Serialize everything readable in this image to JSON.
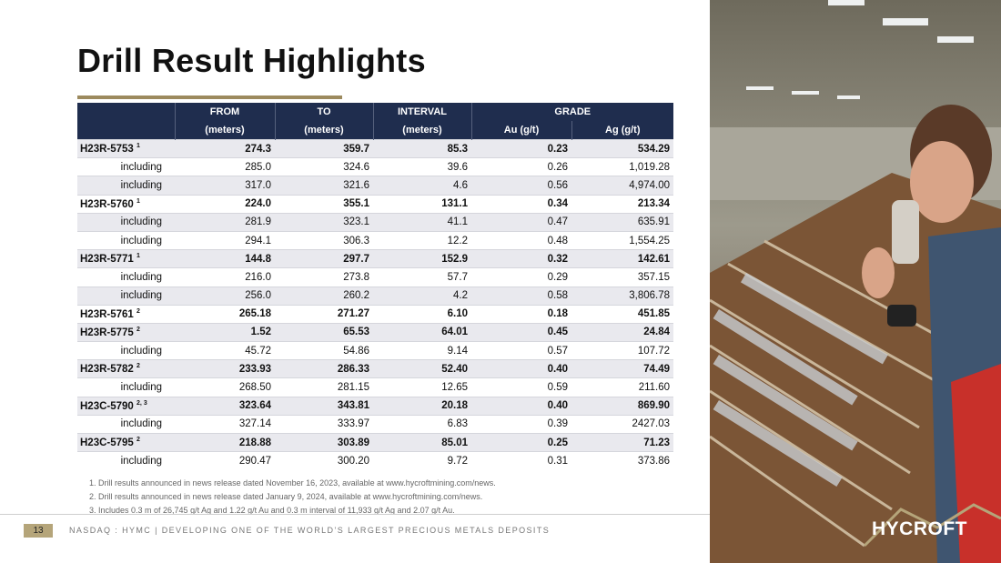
{
  "header": {
    "title": "Drill Result Highlights"
  },
  "table": {
    "group_headers": [
      "FROM",
      "TO",
      "INTERVAL",
      "GRADE"
    ],
    "unit_headers": [
      "(meters)",
      "(meters)",
      "(meters)",
      "Au (g/t)",
      "Ag (g/t)"
    ],
    "rows": [
      {
        "label": "H23R-5753",
        "note": "1",
        "cells": [
          "274.3",
          "359.7",
          "85.3",
          "0.23",
          "534.29"
        ]
      },
      {
        "label": "including",
        "cells": [
          "285.0",
          "324.6",
          "39.6",
          "0.26",
          "1,019.28"
        ]
      },
      {
        "label": "including",
        "cells": [
          "317.0",
          "321.6",
          "4.6",
          "0.56",
          "4,974.00"
        ]
      },
      {
        "label": "H23R-5760",
        "note": "1",
        "cells": [
          "224.0",
          "355.1",
          "131.1",
          "0.34",
          "213.34"
        ]
      },
      {
        "label": "including",
        "cells": [
          "281.9",
          "323.1",
          "41.1",
          "0.47",
          "635.91"
        ]
      },
      {
        "label": "including",
        "cells": [
          "294.1",
          "306.3",
          "12.2",
          "0.48",
          "1,554.25"
        ]
      },
      {
        "label": "H23R-5771",
        "note": "1",
        "cells": [
          "144.8",
          "297.7",
          "152.9",
          "0.32",
          "142.61"
        ]
      },
      {
        "label": "including",
        "cells": [
          "216.0",
          "273.8",
          "57.7",
          "0.29",
          "357.15"
        ]
      },
      {
        "label": "including",
        "cells": [
          "256.0",
          "260.2",
          "4.2",
          "0.58",
          "3,806.78"
        ]
      },
      {
        "label": "H23R-5761",
        "note": "2",
        "cells": [
          "265.18",
          "271.27",
          "6.10",
          "0.18",
          "451.85"
        ]
      },
      {
        "label": "H23R-5775",
        "note": "2",
        "cells": [
          "1.52",
          "65.53",
          "64.01",
          "0.45",
          "24.84"
        ]
      },
      {
        "label": "including",
        "cells": [
          "45.72",
          "54.86",
          "9.14",
          "0.57",
          "107.72"
        ]
      },
      {
        "label": "H23R-5782",
        "note": "2",
        "cells": [
          "233.93",
          "286.33",
          "52.40",
          "0.40",
          "74.49"
        ]
      },
      {
        "label": "including",
        "cells": [
          "268.50",
          "281.15",
          "12.65",
          "0.59",
          "211.60"
        ]
      },
      {
        "label": "H23C-5790",
        "note": "2, 3",
        "cells": [
          "323.64",
          "343.81",
          "20.18",
          "0.40",
          "869.90"
        ]
      },
      {
        "label": "including",
        "cells": [
          "327.14",
          "333.97",
          "6.83",
          "0.39",
          "2427.03"
        ]
      },
      {
        "label": "H23C-5795",
        "note": "2",
        "cells": [
          "218.88",
          "303.89",
          "85.01",
          "0.25",
          "71.23"
        ]
      },
      {
        "label": "including",
        "cells": [
          "290.47",
          "300.20",
          "9.72",
          "0.31",
          "373.86"
        ]
      }
    ]
  },
  "footnotes": [
    "Drill results announced in news release dated November 16, 2023, available at www.hycroftmining.com/news.",
    "Drill results announced in news release dated January 9, 2024, available at www.hycroftmining.com/news.",
    "Includes 0.3 m of 26,745 g/t Ag and 1.22 g/t Au and 0.3 m interval of 11,933 g/t Ag and 2.07 g/t Au."
  ],
  "footer": {
    "page": "13",
    "text": "NASDAQ : HYMC | DEVELOPING ONE OF THE WORLD’S LARGEST PRECIOUS METALS DEPOSITS"
  },
  "logo": "HYCROFT"
}
